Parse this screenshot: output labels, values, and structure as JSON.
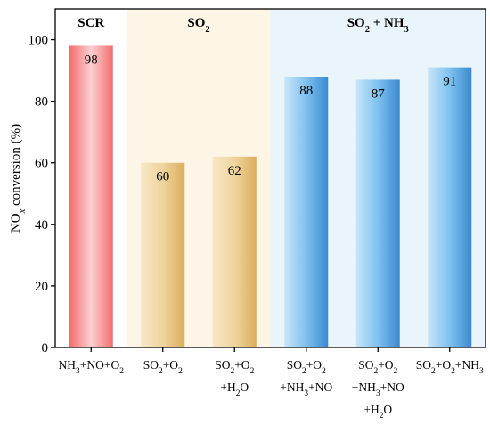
{
  "chart_data": {
    "type": "bar",
    "ylabel_parts": [
      {
        "text": "NO"
      },
      {
        "text": "x",
        "italic": true,
        "sub": true
      },
      {
        "text": " conversion (%)"
      }
    ],
    "ylim": [
      0,
      110
    ],
    "yticks": [
      0,
      20,
      40,
      60,
      80,
      100
    ],
    "grid": false,
    "groups": [
      {
        "label_parts": [
          {
            "text": "SCR"
          }
        ],
        "start": 0,
        "end": 0,
        "color": "#ffffff"
      },
      {
        "label_parts": [
          {
            "text": "SO"
          },
          {
            "text": "2",
            "sub": true
          }
        ],
        "start": 1,
        "end": 2,
        "color": "#fdf6e6"
      },
      {
        "label_parts": [
          {
            "text": "SO"
          },
          {
            "text": "2",
            "sub": true
          },
          {
            "text": " + NH"
          },
          {
            "text": "3",
            "sub": true
          }
        ],
        "start": 3,
        "end": 5,
        "color": "#eaf4fb"
      }
    ],
    "categories": [
      {
        "lines": [
          [
            {
              "text": "NH"
            },
            {
              "text": "3",
              "sub": true
            },
            {
              "text": "+NO+O"
            },
            {
              "text": "2",
              "sub": true
            }
          ]
        ]
      },
      {
        "lines": [
          [
            {
              "text": "SO"
            },
            {
              "text": "2",
              "sub": true
            },
            {
              "text": "+O"
            },
            {
              "text": "2",
              "sub": true
            }
          ]
        ]
      },
      {
        "lines": [
          [
            {
              "text": "SO"
            },
            {
              "text": "2",
              "sub": true
            },
            {
              "text": "+O"
            },
            {
              "text": "2",
              "sub": true
            }
          ],
          [
            {
              "text": "+H"
            },
            {
              "text": "2",
              "sub": true
            },
            {
              "text": "O"
            }
          ]
        ]
      },
      {
        "lines": [
          [
            {
              "text": "SO"
            },
            {
              "text": "2",
              "sub": true
            },
            {
              "text": "+O"
            },
            {
              "text": "2",
              "sub": true
            }
          ],
          [
            {
              "text": "+NH"
            },
            {
              "text": "3",
              "sub": true
            },
            {
              "text": "+NO"
            }
          ]
        ]
      },
      {
        "lines": [
          [
            {
              "text": "SO"
            },
            {
              "text": "2",
              "sub": true
            },
            {
              "text": "+O"
            },
            {
              "text": "2",
              "sub": true
            }
          ],
          [
            {
              "text": "+NH"
            },
            {
              "text": "3",
              "sub": true
            },
            {
              "text": "+NO"
            }
          ],
          [
            {
              "text": "+H"
            },
            {
              "text": "2",
              "sub": true
            },
            {
              "text": "O"
            }
          ]
        ]
      },
      {
        "lines": [
          [
            {
              "text": "SO"
            },
            {
              "text": "2",
              "sub": true
            },
            {
              "text": "+O"
            },
            {
              "text": "2",
              "sub": true
            },
            {
              "text": "+NH"
            },
            {
              "text": "3",
              "sub": true
            }
          ]
        ]
      }
    ],
    "values": [
      98,
      60,
      62,
      88,
      87,
      91
    ],
    "data_labels": [
      "98",
      "60",
      "62",
      "88",
      "87",
      "91"
    ],
    "bar_styles": [
      "red",
      "gold",
      "gold",
      "blue",
      "blue",
      "blue"
    ],
    "colors": {
      "red": [
        "#f46d6d",
        "#fbd0d0",
        "#f46d6d"
      ],
      "gold": [
        "#f8e7c6",
        "#efd49e",
        "#dcae5c"
      ],
      "blue": [
        "#c8e5f9",
        "#7ec1ef",
        "#3a89d0"
      ]
    }
  }
}
